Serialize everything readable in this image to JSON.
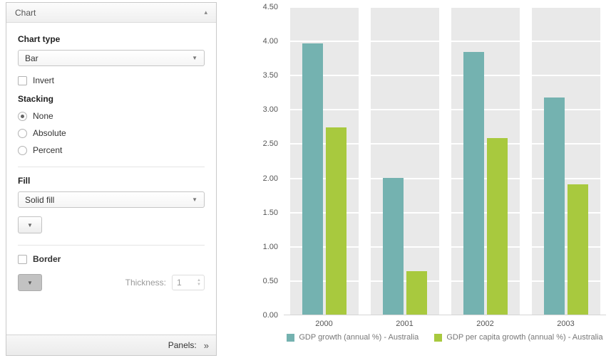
{
  "panel": {
    "title": "Chart",
    "collapse_icon": "▴",
    "chart_type": {
      "label": "Chart type",
      "value": "Bar"
    },
    "invert": {
      "label": "Invert",
      "checked": false
    },
    "stacking": {
      "label": "Stacking",
      "options": [
        "None",
        "Absolute",
        "Percent"
      ],
      "selected": "None"
    },
    "fill": {
      "label": "Fill",
      "value": "Solid fill"
    },
    "border": {
      "label": "Border",
      "checked": false
    },
    "thickness": {
      "label": "Thickness:",
      "value": "1"
    },
    "footer": {
      "label": "Panels:",
      "chevron": "»"
    }
  },
  "chart_data": {
    "type": "bar",
    "title": "",
    "xlabel": "",
    "ylabel": "",
    "categories": [
      "2000",
      "2001",
      "2002",
      "2003"
    ],
    "series": [
      {
        "name": "GDP growth (annual %) - Australia",
        "color": "#74b2b0",
        "values": [
          3.96,
          2.0,
          3.84,
          3.17
        ]
      },
      {
        "name": "GDP per capita growth (annual %) - Australia",
        "color": "#a8c93e",
        "values": [
          2.73,
          0.63,
          2.58,
          1.9
        ]
      }
    ],
    "ylim": [
      0,
      4.5
    ],
    "ytick_step": 0.5,
    "yticks": [
      "0.00",
      "0.50",
      "1.00",
      "1.50",
      "2.00",
      "2.50",
      "3.00",
      "3.50",
      "4.00",
      "4.50"
    ],
    "grid": true,
    "band_color": "#e9e9e9",
    "legend_position": "bottom"
  }
}
